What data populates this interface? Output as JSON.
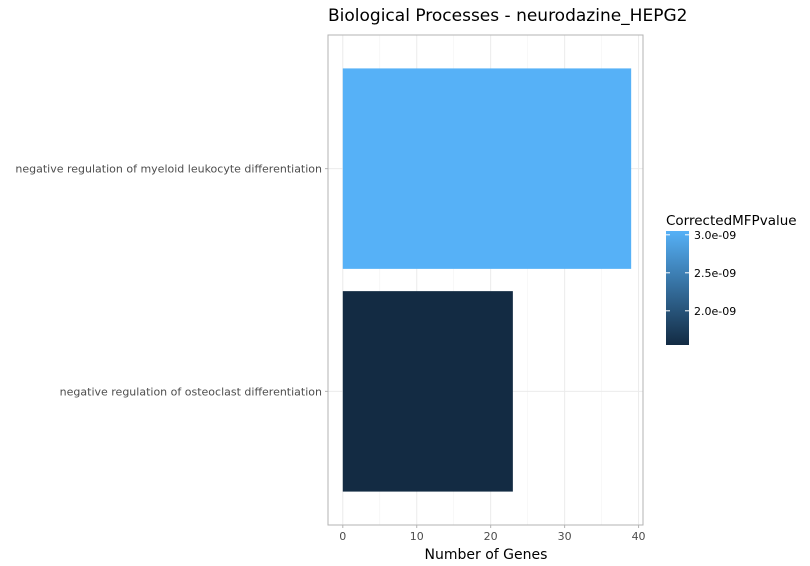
{
  "chart_data": {
    "type": "bar",
    "orientation": "horizontal",
    "title": "Biological Processes - neurodazine_HEPG2",
    "xlabel": "Number of Genes",
    "ylabel": "",
    "categories": [
      "negative regulation of myeloid leukocyte differentiation",
      "negative regulation of osteoclast differentiation"
    ],
    "values": [
      39,
      23
    ],
    "color_values": [
      3.05e-09,
      1.55e-09
    ],
    "xlim": [
      -2,
      40.6
    ],
    "x_ticks": [
      0,
      10,
      20,
      30,
      40
    ],
    "x_tick_labels": [
      "0",
      "10",
      "20",
      "30",
      "40"
    ],
    "grid": true,
    "legend": {
      "title": "CorrectedMFPvalue",
      "position": "right",
      "type": "colorbar",
      "range": [
        1.55e-09,
        3.05e-09
      ],
      "breaks": [
        3e-09,
        2.5e-09,
        2e-09
      ],
      "break_labels": [
        "3.0e-09",
        "2.5e-09",
        "2.0e-09"
      ],
      "low_color": "#132B43",
      "high_color": "#56B1F7"
    }
  }
}
